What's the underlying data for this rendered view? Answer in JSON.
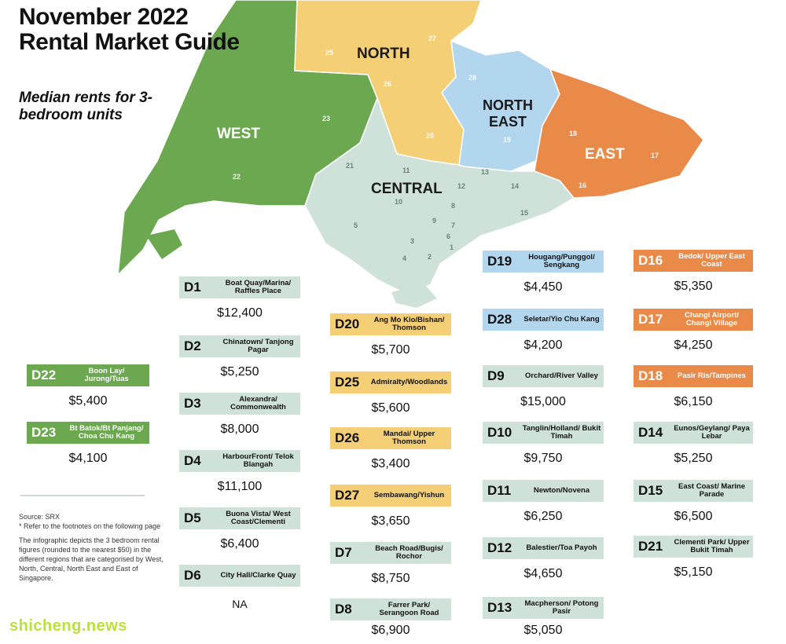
{
  "title": "November 2022 Rental Market Guide",
  "subtitle": "Median rents for 3-bedroom units",
  "colors": {
    "west": "#6ba84f",
    "north": "#f4cf76",
    "north_east": "#b3d6ef",
    "central": "#cfe2da",
    "east": "#e98a48"
  },
  "regions": [
    {
      "id": "west",
      "label": "WEST"
    },
    {
      "id": "north",
      "label": "NORTH"
    },
    {
      "id": "north_east",
      "label": "NORTH EAST"
    },
    {
      "id": "central",
      "label": "CENTRAL"
    },
    {
      "id": "east",
      "label": "EAST"
    }
  ],
  "district_numbers": [
    "1",
    "2",
    "3",
    "4",
    "5",
    "6",
    "7",
    "8",
    "9",
    "10",
    "11",
    "12",
    "13",
    "14",
    "15",
    "16",
    "17",
    "18",
    "19",
    "20",
    "21",
    "22",
    "23",
    "25",
    "26",
    "27",
    "28"
  ],
  "districts": [
    {
      "code": "D22",
      "area": "Boon Lay/ Jurong/Tuas",
      "rent": "$5,400",
      "region": "west"
    },
    {
      "code": "D23",
      "area": "Bt Batok/Bt Panjang/ Choa Chu Kang",
      "rent": "$4,100",
      "region": "west"
    },
    {
      "code": "D1",
      "area": "Boat Quay/Marina/ Raffles Place",
      "rent": "$12,400",
      "region": "central"
    },
    {
      "code": "D2",
      "area": "Chinatown/ Tanjong Pagar",
      "rent": "$5,250",
      "region": "central"
    },
    {
      "code": "D3",
      "area": "Alexandra/ Commonwealth",
      "rent": "$8,000",
      "region": "central"
    },
    {
      "code": "D4",
      "area": "HarbourFront/ Telok Blangah",
      "rent": "$11,100",
      "region": "central"
    },
    {
      "code": "D5",
      "area": "Buona Vista/ West Coast/Clementi",
      "rent": "$6,400",
      "region": "central"
    },
    {
      "code": "D6",
      "area": "City Hall/Clarke Quay",
      "rent": "NA",
      "region": "central"
    },
    {
      "code": "D20",
      "area": "Ang Mo Kio/Bishan/ Thomson",
      "rent": "$5,700",
      "region": "north"
    },
    {
      "code": "D25",
      "area": "Admiralty/Woodlands",
      "rent": "$5,600",
      "region": "north"
    },
    {
      "code": "D26",
      "area": "Mandai/ Upper Thomson",
      "rent": "$3,400",
      "region": "north"
    },
    {
      "code": "D27",
      "area": "Sembawang/Yishun",
      "rent": "$3,650",
      "region": "north"
    },
    {
      "code": "D7",
      "area": "Beach Road/Bugis/ Rochor",
      "rent": "$8,750",
      "region": "central"
    },
    {
      "code": "D8",
      "area": "Farrer Park/ Serangoon Road",
      "rent": "$6,900",
      "region": "central"
    },
    {
      "code": "D19",
      "area": "Hougang/Punggol/ Sengkang",
      "rent": "$4,450",
      "region": "north_east"
    },
    {
      "code": "D28",
      "area": "Seletar/Yio Chu Kang",
      "rent": "$4,200",
      "region": "north_east"
    },
    {
      "code": "D9",
      "area": "Orchard/River Valley",
      "rent": "$15,000",
      "region": "central"
    },
    {
      "code": "D10",
      "area": "Tanglin/Holland/ Bukit Timah",
      "rent": "$9,750",
      "region": "central"
    },
    {
      "code": "D11",
      "area": "Newton/Novena",
      "rent": "$6,250",
      "region": "central"
    },
    {
      "code": "D12",
      "area": "Balestier/Toa Payoh",
      "rent": "$4,650",
      "region": "central"
    },
    {
      "code": "D13",
      "area": "Macpherson/ Potong Pasir",
      "rent": "$5,050",
      "region": "central"
    },
    {
      "code": "D16",
      "area": "Bedok/ Upper East Coast",
      "rent": "$5,350",
      "region": "east"
    },
    {
      "code": "D17",
      "area": "Changi Airport/ Changi Village",
      "rent": "$4,250",
      "region": "east"
    },
    {
      "code": "D18",
      "area": "Pasir Ris/Tampines",
      "rent": "$6,150",
      "region": "east"
    },
    {
      "code": "D14",
      "area": "Eunos/Geylang/ Paya Lebar",
      "rent": "$5,250",
      "region": "central"
    },
    {
      "code": "D15",
      "area": "East Coast/ Marine Parade",
      "rent": "$6,500",
      "region": "central"
    },
    {
      "code": "D21",
      "area": "Clementi Park/ Upper Bukit Timah",
      "rent": "$5,150",
      "region": "central"
    }
  ],
  "source": {
    "line1": "Source: SRX",
    "line2": "* Refer to the footnotes on the following page",
    "line3": "The infographic depicts the 3 bedroom rental figures (rounded to the nearest $50) in the different regions that are categorised by West, North, Central, North East and East of Singapore."
  },
  "watermark": "shicheng.news"
}
